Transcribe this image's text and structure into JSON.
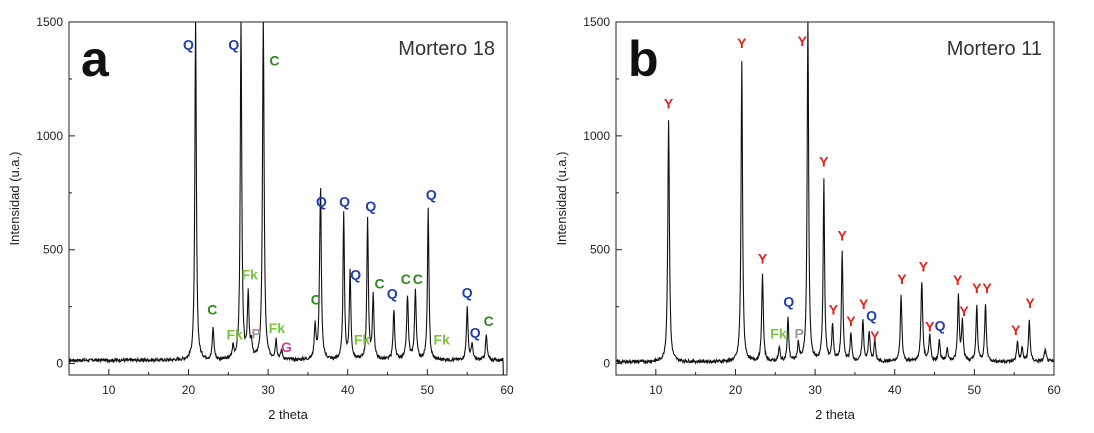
{
  "chart_data": [
    {
      "type": "line",
      "panel_letter": "a",
      "title": "Mortero 18",
      "xlabel": "2 theta",
      "ylabel": "Intensidad (u.a.)",
      "xlim": [
        5,
        60
      ],
      "ylim": [
        -50,
        1500
      ],
      "xticks": [
        10,
        20,
        30,
        40,
        50,
        60
      ],
      "yticks": [
        0,
        500,
        1000,
        1500
      ],
      "grid": false,
      "series": [
        {
          "peaks": [
            [
              20.9,
              1500,
              0.11
            ],
            [
              26.6,
              1500,
              0.11
            ],
            [
              29.4,
              1500,
              0.12
            ],
            [
              23.1,
              140,
              0.12
            ],
            [
              25.6,
              55,
              0.12
            ],
            [
              27.5,
              285,
              0.12
            ],
            [
              27.9,
              60,
              0.12
            ],
            [
              31.0,
              85,
              0.12
            ],
            [
              31.7,
              40,
              0.12
            ],
            [
              35.9,
              150,
              0.12
            ],
            [
              36.5,
              230,
              0.12
            ],
            [
              36.6,
              620,
              0.11
            ],
            [
              39.5,
              640,
              0.11
            ],
            [
              40.3,
              390,
              0.11
            ],
            [
              42.5,
              620,
              0.11
            ],
            [
              43.2,
              275,
              0.12
            ],
            [
              45.8,
              220,
              0.12
            ],
            [
              47.5,
              280,
              0.13
            ],
            [
              48.5,
              300,
              0.13
            ],
            [
              50.1,
              660,
              0.11
            ],
            [
              55.0,
              230,
              0.12
            ],
            [
              55.6,
              70,
              0.12
            ],
            [
              57.4,
              110,
              0.12
            ]
          ],
          "baseline": 15,
          "end_dip": [
            59.5,
            -60
          ]
        }
      ],
      "annotations": [
        {
          "text": "Q",
          "x": 20.0,
          "y": 1380,
          "color": "#1f3fae"
        },
        {
          "text": "Q",
          "x": 25.7,
          "y": 1380,
          "color": "#1f3fae"
        },
        {
          "text": "C",
          "x": 30.8,
          "y": 1310,
          "color": "#2e8b1e"
        },
        {
          "text": "Fk",
          "x": 27.7,
          "y": 370,
          "color": "#7cc242"
        },
        {
          "text": "C",
          "x": 23.0,
          "y": 215,
          "color": "#2e8b1e"
        },
        {
          "text": "Fk",
          "x": 25.8,
          "y": 105,
          "color": "#7cc242"
        },
        {
          "text": "P",
          "x": 28.5,
          "y": 110,
          "color": "#9a9a9a"
        },
        {
          "text": "Fk",
          "x": 31.1,
          "y": 135,
          "color": "#7cc242"
        },
        {
          "text": "G",
          "x": 32.3,
          "y": 50,
          "color": "#c6409a"
        },
        {
          "text": "Q",
          "x": 36.7,
          "y": 690,
          "color": "#1f3fae"
        },
        {
          "text": "Q",
          "x": 39.6,
          "y": 690,
          "color": "#1f3fae"
        },
        {
          "text": "Q",
          "x": 42.9,
          "y": 670,
          "color": "#1f3fae"
        },
        {
          "text": "Q",
          "x": 50.5,
          "y": 720,
          "color": "#1f3fae"
        },
        {
          "text": "Q",
          "x": 41.0,
          "y": 370,
          "color": "#1f3fae"
        },
        {
          "text": "C",
          "x": 36.0,
          "y": 260,
          "color": "#2e8b1e"
        },
        {
          "text": "C",
          "x": 44.0,
          "y": 330,
          "color": "#2e8b1e"
        },
        {
          "text": "C",
          "x": 47.3,
          "y": 350,
          "color": "#2e8b1e"
        },
        {
          "text": "C",
          "x": 48.8,
          "y": 350,
          "color": "#2e8b1e"
        },
        {
          "text": "Q",
          "x": 45.6,
          "y": 285,
          "color": "#1f3fae"
        },
        {
          "text": "Fk",
          "x": 41.8,
          "y": 85,
          "color": "#7cc242"
        },
        {
          "text": "Fk",
          "x": 51.8,
          "y": 85,
          "color": "#7cc242"
        },
        {
          "text": "Q",
          "x": 55.0,
          "y": 290,
          "color": "#1f3fae"
        },
        {
          "text": "Q",
          "x": 56.0,
          "y": 115,
          "color": "#1f3fae"
        },
        {
          "text": "C",
          "x": 57.7,
          "y": 165,
          "color": "#2e8b1e"
        }
      ]
    },
    {
      "type": "line",
      "panel_letter": "b",
      "title": "Mortero 11",
      "xlabel": "2 theta",
      "ylabel": "Intensidad (u.a.)",
      "xlim": [
        5,
        60
      ],
      "ylim": [
        -50,
        1500
      ],
      "xticks": [
        10,
        20,
        30,
        40,
        50,
        60
      ],
      "yticks": [
        0,
        500,
        1000,
        1500
      ],
      "grid": false,
      "series": [
        {
          "peaks": [
            [
              11.6,
              1060,
              0.12
            ],
            [
              20.8,
              1320,
              0.11
            ],
            [
              23.4,
              380,
              0.12
            ],
            [
              25.5,
              60,
              0.12
            ],
            [
              26.6,
              190,
              0.11
            ],
            [
              27.9,
              80,
              0.12
            ],
            [
              29.1,
              1500,
              0.11
            ],
            [
              31.1,
              800,
              0.11
            ],
            [
              32.2,
              160,
              0.12
            ],
            [
              33.4,
              480,
              0.11
            ],
            [
              34.5,
              120,
              0.12
            ],
            [
              36.0,
              180,
              0.12
            ],
            [
              36.8,
              130,
              0.12
            ],
            [
              37.5,
              90,
              0.12
            ],
            [
              40.8,
              290,
              0.12
            ],
            [
              43.4,
              350,
              0.13
            ],
            [
              44.4,
              120,
              0.12
            ],
            [
              45.6,
              95,
              0.12
            ],
            [
              46.6,
              60,
              0.12
            ],
            [
              48.0,
              290,
              0.12
            ],
            [
              48.5,
              180,
              0.12
            ],
            [
              50.3,
              240,
              0.12
            ],
            [
              51.4,
              250,
              0.12
            ],
            [
              55.4,
              90,
              0.12
            ],
            [
              56.0,
              60,
              0.12
            ],
            [
              56.9,
              180,
              0.12
            ],
            [
              58.9,
              50,
              0.15
            ]
          ],
          "baseline": 8
        }
      ],
      "annotations": [
        {
          "text": "Y",
          "x": 11.6,
          "y": 1120,
          "color": "#e2231a"
        },
        {
          "text": "Y",
          "x": 20.8,
          "y": 1385,
          "color": "#e2231a"
        },
        {
          "text": "Y",
          "x": 28.4,
          "y": 1395,
          "color": "#e2231a"
        },
        {
          "text": "Y",
          "x": 31.1,
          "y": 865,
          "color": "#e2231a"
        },
        {
          "text": "Y",
          "x": 33.4,
          "y": 540,
          "color": "#e2231a"
        },
        {
          "text": "Y",
          "x": 23.4,
          "y": 440,
          "color": "#e2231a"
        },
        {
          "text": "Q",
          "x": 26.7,
          "y": 250,
          "color": "#1f3fae"
        },
        {
          "text": "Fk",
          "x": 25.4,
          "y": 110,
          "color": "#7cc242"
        },
        {
          "text": "P",
          "x": 28.0,
          "y": 110,
          "color": "#9a9a9a"
        },
        {
          "text": "Y",
          "x": 32.3,
          "y": 215,
          "color": "#e2231a"
        },
        {
          "text": "Y",
          "x": 34.5,
          "y": 165,
          "color": "#e2231a"
        },
        {
          "text": "Y",
          "x": 36.1,
          "y": 240,
          "color": "#e2231a"
        },
        {
          "text": "Q",
          "x": 37.1,
          "y": 190,
          "color": "#1f3fae"
        },
        {
          "text": "Y",
          "x": 37.5,
          "y": 100,
          "color": "#e2231a"
        },
        {
          "text": "Y",
          "x": 40.9,
          "y": 350,
          "color": "#e2231a"
        },
        {
          "text": "Y",
          "x": 43.6,
          "y": 405,
          "color": "#e2231a"
        },
        {
          "text": "Y",
          "x": 44.4,
          "y": 140,
          "color": "#e2231a"
        },
        {
          "text": "Q",
          "x": 45.7,
          "y": 145,
          "color": "#1f3fae"
        },
        {
          "text": "Y",
          "x": 47.9,
          "y": 345,
          "color": "#e2231a"
        },
        {
          "text": "Y",
          "x": 48.7,
          "y": 210,
          "color": "#e2231a"
        },
        {
          "text": "Y",
          "x": 50.3,
          "y": 310,
          "color": "#e2231a"
        },
        {
          "text": "Y",
          "x": 51.6,
          "y": 310,
          "color": "#e2231a"
        },
        {
          "text": "Y",
          "x": 55.2,
          "y": 125,
          "color": "#e2231a"
        },
        {
          "text": "Y",
          "x": 57.0,
          "y": 245,
          "color": "#e2231a"
        }
      ]
    }
  ]
}
